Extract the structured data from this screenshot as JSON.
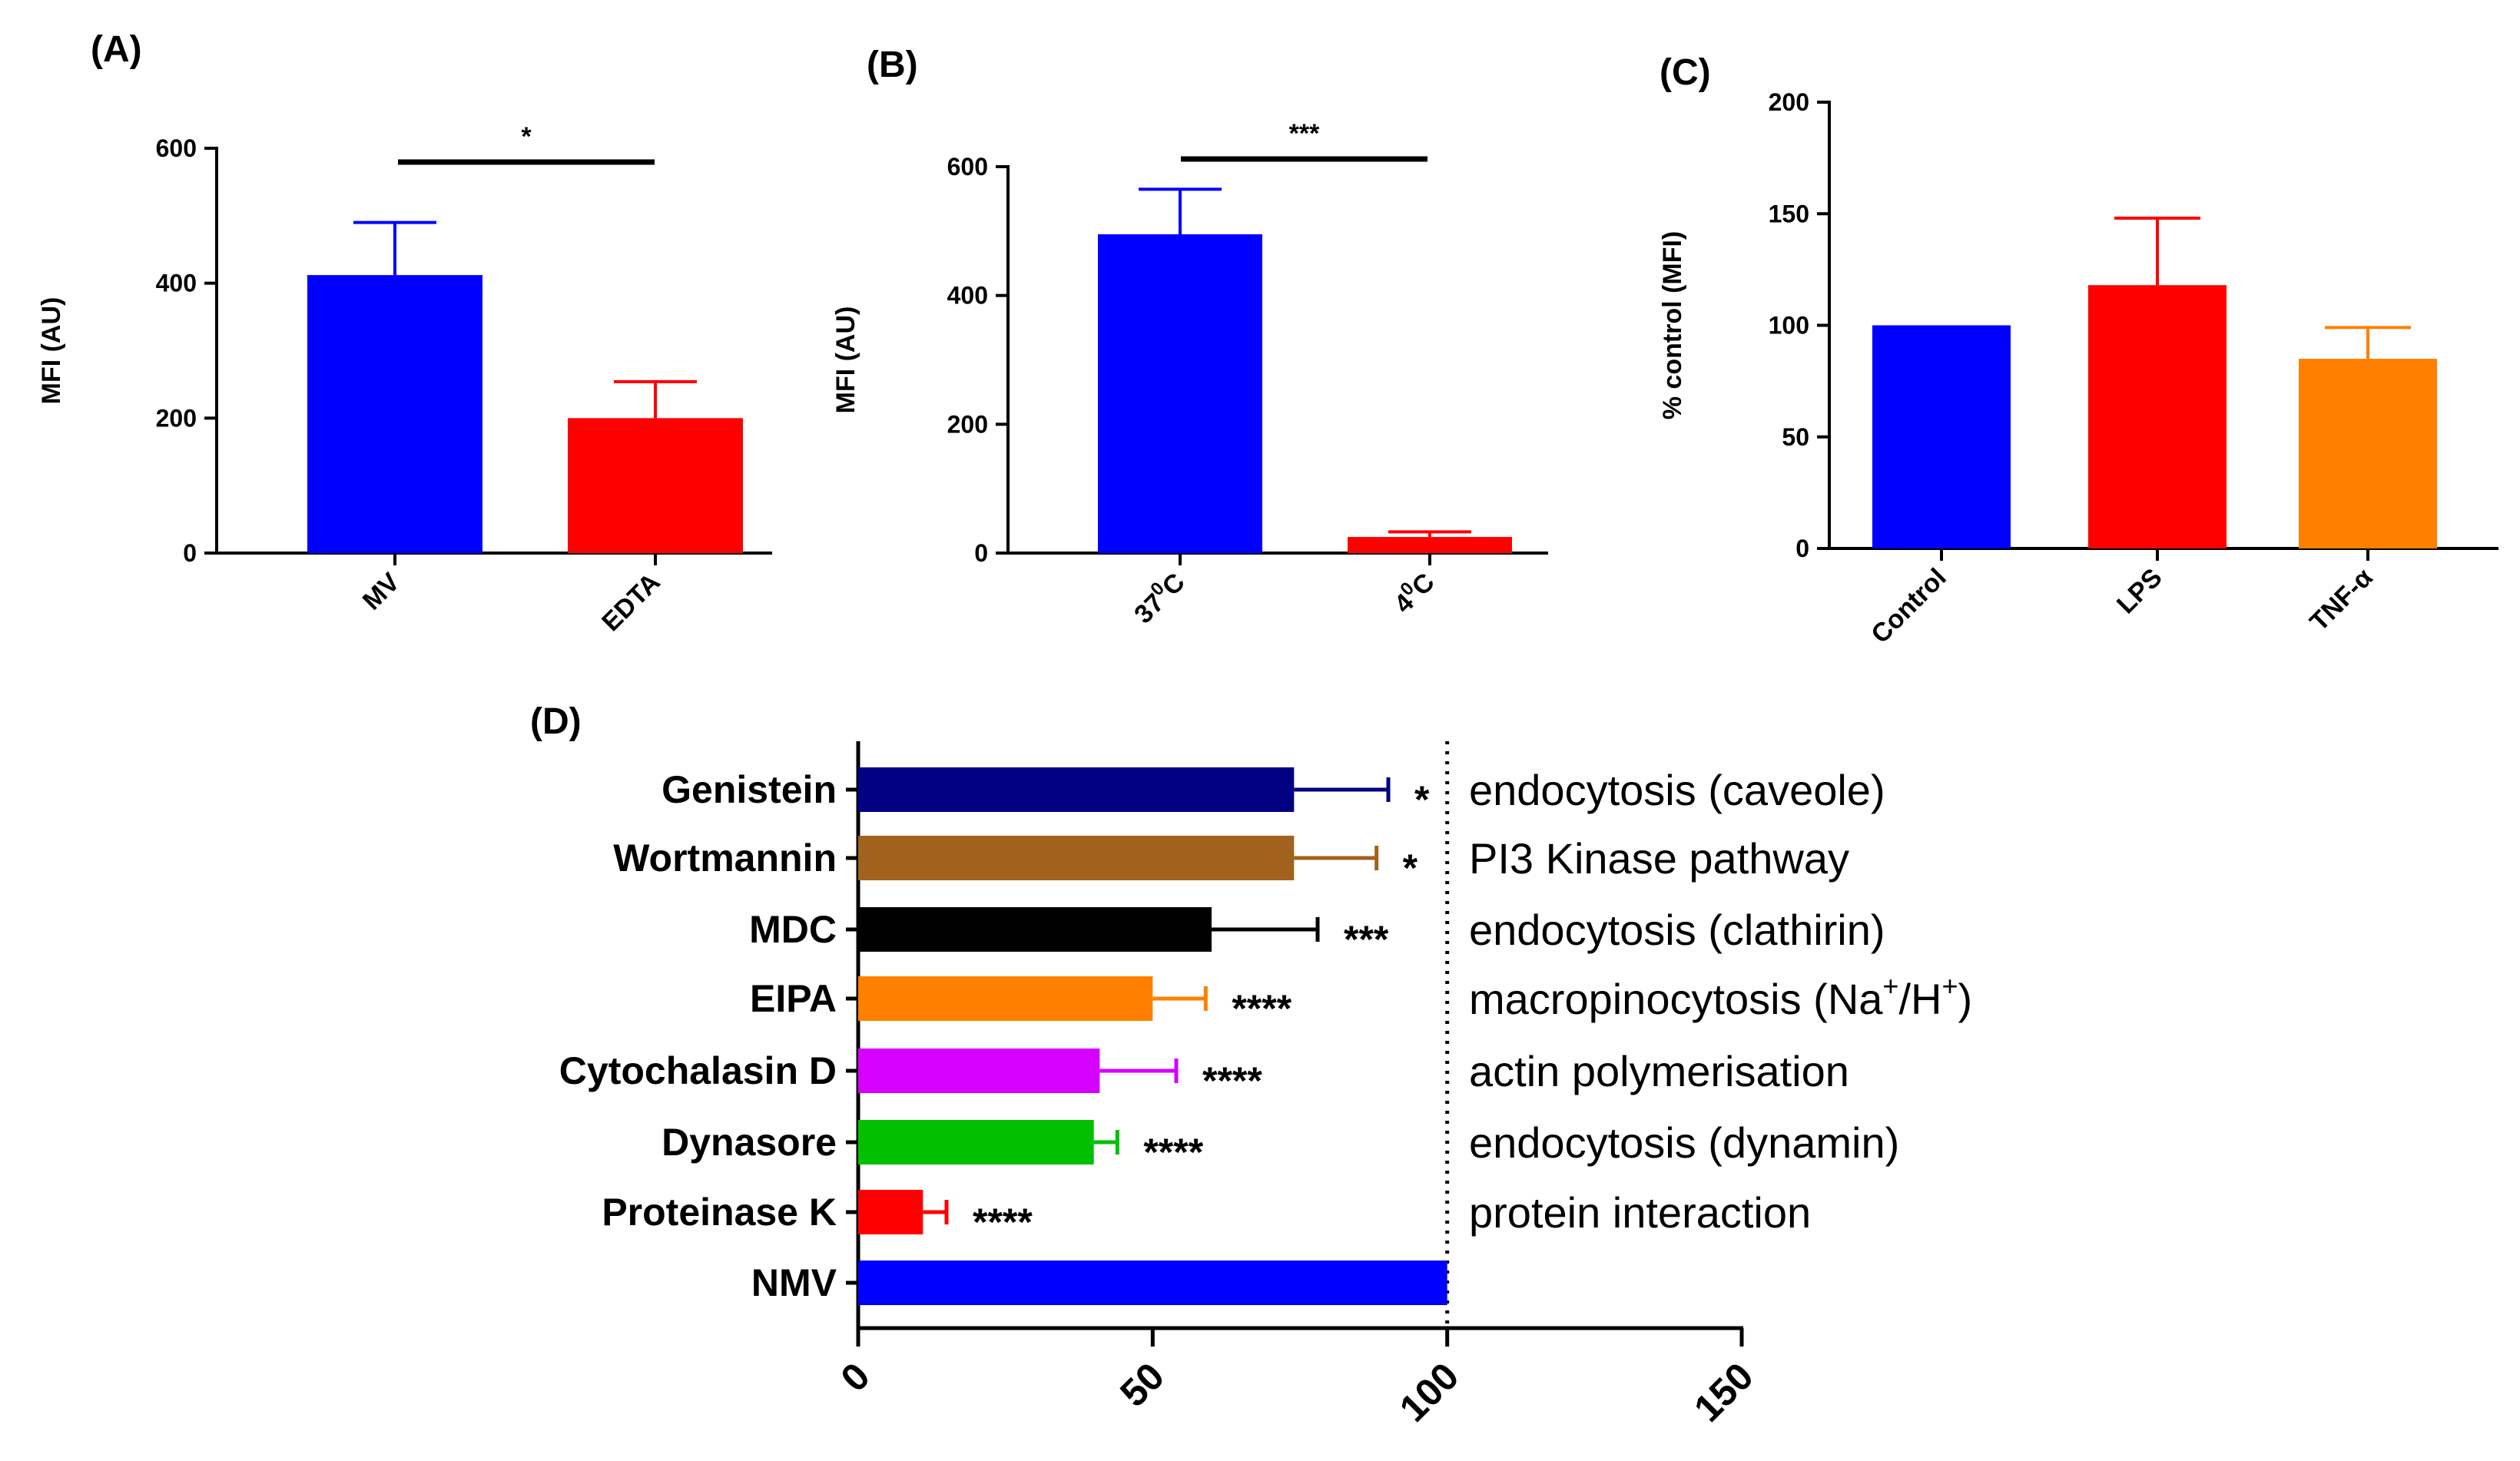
{
  "chart_data": [
    {
      "panel": "(A)",
      "type": "bar",
      "categories": [
        "MV",
        "EDTA"
      ],
      "values": [
        412,
        200
      ],
      "errors": [
        78,
        54
      ],
      "colors": [
        "#0000ff",
        "#ff0000"
      ],
      "ylabel": "MFI (AU)",
      "ylim": [
        0,
        600
      ],
      "yticks": [
        "0",
        "200",
        "400",
        "600"
      ],
      "significance": "*"
    },
    {
      "panel": "(B)",
      "type": "bar",
      "categories_parts": [
        [
          "37",
          "0",
          "C"
        ],
        [
          "4",
          "0",
          "C"
        ]
      ],
      "values": [
        495,
        25
      ],
      "errors": [
        70,
        8
      ],
      "colors": [
        "#0000ff",
        "#ff0000"
      ],
      "ylabel": "MFI (AU)",
      "ylim": [
        0,
        600
      ],
      "yticks": [
        "0",
        "200",
        "400",
        "600"
      ],
      "significance": "***"
    },
    {
      "panel": "(C)",
      "type": "bar",
      "categories": [
        "Control",
        "LPS",
        "TNF-α"
      ],
      "values": [
        100,
        118,
        85
      ],
      "errors": [
        0,
        30,
        14
      ],
      "colors": [
        "#0000ff",
        "#ff0000",
        "#ff8000"
      ],
      "ylabel": "% control (MFI)",
      "ylim": [
        0,
        200
      ],
      "yticks": [
        "0",
        "50",
        "100",
        "150",
        "200"
      ]
    },
    {
      "panel": "(D)",
      "type": "bar",
      "orientation": "horizontal",
      "categories": [
        "Genistein",
        "Wortmannin",
        "MDC",
        "EIPA",
        "Cytochalasin D",
        "Dynasore",
        "Proteinase K",
        "NMV"
      ],
      "values": [
        74,
        74,
        60,
        50,
        41,
        40,
        11,
        100
      ],
      "errors": [
        16,
        14,
        18,
        9,
        13,
        4,
        4,
        0
      ],
      "colors": [
        "#000080",
        "#a0621c",
        "#000000",
        "#ff8000",
        "#d500ff",
        "#00c000",
        "#ff0000",
        "#0000ff"
      ],
      "significance": [
        "*",
        "*",
        "***",
        "****",
        "****",
        "****",
        "****",
        ""
      ],
      "mechanisms": [
        {
          "text": "endocytosis (caveole)"
        },
        {
          "text": "PI3 Kinase pathway"
        },
        {
          "text": "endocytosis (clathirin)"
        },
        {
          "text": "macropinocytosis (Na",
          "sup1": "+",
          "mid": "/H",
          "sup2": "+",
          "end": ")"
        },
        {
          "text": "actin polymerisation"
        },
        {
          "text": "endocytosis (dynamin)"
        },
        {
          "text": "protein interaction"
        },
        {
          "text": ""
        }
      ],
      "xlim": [
        0,
        150
      ],
      "xticks": [
        "0",
        "50",
        "100",
        "150"
      ],
      "reference_line": 100
    }
  ]
}
